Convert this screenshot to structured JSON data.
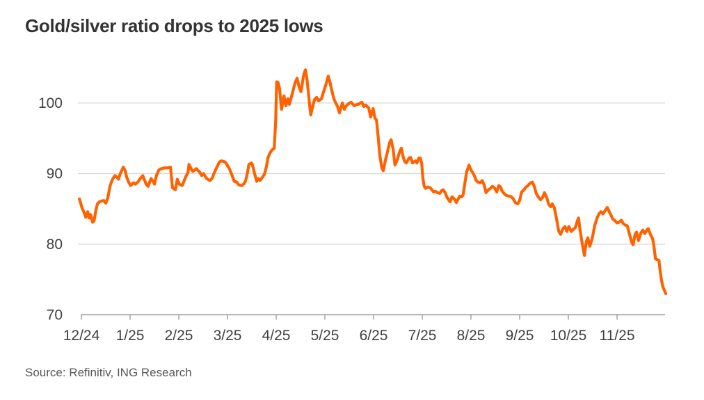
{
  "title": "Gold/silver ratio drops to 2025 lows",
  "source_note": "Source: Refinitiv, ING Research",
  "colors": {
    "line": "#FF6200",
    "title_text": "#333333",
    "axis_text": "#404040",
    "grid_line": "#d9d9d9",
    "axis_line": "#9b9b9b",
    "source_text": "#56575b",
    "background": "#ffffff"
  },
  "chart_data": {
    "type": "line",
    "title": "Gold/silver ratio drops to 2025 lows",
    "xlabel": "",
    "ylabel": "",
    "x_unit": "months offset from 12/24 tick (0 = 12/24, 11 = 11/25)",
    "x_tick_labels": [
      "12/24",
      "1/25",
      "2/25",
      "3/25",
      "4/25",
      "5/25",
      "6/25",
      "7/25",
      "8/25",
      "9/25",
      "10/25",
      "11/25"
    ],
    "x_tick_positions": [
      0,
      1,
      2,
      3,
      4,
      5,
      6,
      7,
      8,
      9,
      10,
      11
    ],
    "y_ticks": [
      70,
      80,
      90,
      100
    ],
    "ylim": [
      70,
      106
    ],
    "xlim": [
      -0.05,
      12.0
    ],
    "grid": "horizontal",
    "legend": "none",
    "series": [
      {
        "name": "Gold/silver ratio",
        "color": "#FF6200",
        "points": [
          [
            -0.04,
            86.4
          ],
          [
            0.01,
            85.2
          ],
          [
            0.06,
            84.4
          ],
          [
            0.09,
            83.8
          ],
          [
            0.13,
            84.6
          ],
          [
            0.16,
            83.7
          ],
          [
            0.19,
            84.2
          ],
          [
            0.23,
            83.1
          ],
          [
            0.26,
            83.3
          ],
          [
            0.3,
            84.9
          ],
          [
            0.33,
            85.7
          ],
          [
            0.37,
            86.0
          ],
          [
            0.41,
            86.1
          ],
          [
            0.46,
            86.2
          ],
          [
            0.5,
            85.8
          ],
          [
            0.54,
            86.5
          ],
          [
            0.59,
            88.3
          ],
          [
            0.64,
            89.2
          ],
          [
            0.69,
            89.7
          ],
          [
            0.73,
            89.5
          ],
          [
            0.76,
            89.2
          ],
          [
            0.8,
            90.0
          ],
          [
            0.86,
            90.9
          ],
          [
            0.9,
            90.4
          ],
          [
            0.93,
            89.5
          ],
          [
            0.97,
            88.8
          ],
          [
            1.01,
            88.3
          ],
          [
            1.07,
            88.7
          ],
          [
            1.11,
            88.5
          ],
          [
            1.16,
            88.8
          ],
          [
            1.21,
            89.3
          ],
          [
            1.26,
            89.7
          ],
          [
            1.33,
            88.5
          ],
          [
            1.37,
            88.2
          ],
          [
            1.43,
            89.3
          ],
          [
            1.47,
            88.9
          ],
          [
            1.5,
            88.5
          ],
          [
            1.54,
            89.7
          ],
          [
            1.59,
            90.5
          ],
          [
            1.64,
            90.7
          ],
          [
            1.7,
            90.8
          ],
          [
            1.76,
            90.8
          ],
          [
            1.83,
            90.9
          ],
          [
            1.87,
            88.0
          ],
          [
            1.93,
            87.7
          ],
          [
            1.97,
            89.2
          ],
          [
            2.01,
            88.5
          ],
          [
            2.07,
            88.3
          ],
          [
            2.14,
            89.5
          ],
          [
            2.19,
            90.2
          ],
          [
            2.21,
            91.3
          ],
          [
            2.26,
            90.6
          ],
          [
            2.29,
            90.3
          ],
          [
            2.33,
            90.5
          ],
          [
            2.36,
            90.7
          ],
          [
            2.4,
            90.4
          ],
          [
            2.43,
            90.2
          ],
          [
            2.47,
            89.7
          ],
          [
            2.51,
            90.0
          ],
          [
            2.56,
            89.4
          ],
          [
            2.59,
            89.2
          ],
          [
            2.64,
            89.0
          ],
          [
            2.69,
            89.4
          ],
          [
            2.71,
            89.8
          ],
          [
            2.76,
            90.6
          ],
          [
            2.79,
            91.0
          ],
          [
            2.83,
            91.6
          ],
          [
            2.87,
            91.8
          ],
          [
            2.93,
            91.7
          ],
          [
            2.97,
            91.5
          ],
          [
            3.01,
            91.0
          ],
          [
            3.04,
            90.7
          ],
          [
            3.09,
            89.8
          ],
          [
            3.14,
            88.9
          ],
          [
            3.19,
            88.8
          ],
          [
            3.23,
            88.4
          ],
          [
            3.29,
            88.3
          ],
          [
            3.33,
            88.5
          ],
          [
            3.37,
            88.9
          ],
          [
            3.41,
            90.1
          ],
          [
            3.44,
            91.3
          ],
          [
            3.49,
            91.5
          ],
          [
            3.51,
            91.3
          ],
          [
            3.56,
            89.9
          ],
          [
            3.6,
            88.9
          ],
          [
            3.63,
            89.3
          ],
          [
            3.67,
            89.0
          ],
          [
            3.71,
            89.4
          ],
          [
            3.76,
            89.9
          ],
          [
            3.8,
            91.0
          ],
          [
            3.83,
            92.2
          ],
          [
            3.87,
            92.9
          ],
          [
            3.91,
            93.3
          ],
          [
            3.96,
            93.6
          ],
          [
            3.99,
            97.5
          ],
          [
            4.01,
            103.0
          ],
          [
            4.04,
            102.9
          ],
          [
            4.07,
            102.0
          ],
          [
            4.11,
            99.1
          ],
          [
            4.16,
            101.0
          ],
          [
            4.2,
            99.6
          ],
          [
            4.24,
            100.6
          ],
          [
            4.27,
            99.8
          ],
          [
            4.33,
            101.3
          ],
          [
            4.39,
            102.9
          ],
          [
            4.43,
            103.5
          ],
          [
            4.47,
            102.3
          ],
          [
            4.51,
            101.6
          ],
          [
            4.56,
            103.8
          ],
          [
            4.6,
            104.7
          ],
          [
            4.63,
            103.5
          ],
          [
            4.66,
            101.6
          ],
          [
            4.69,
            99.5
          ],
          [
            4.71,
            98.3
          ],
          [
            4.76,
            99.8
          ],
          [
            4.79,
            100.5
          ],
          [
            4.83,
            100.8
          ],
          [
            4.87,
            100.3
          ],
          [
            4.93,
            100.6
          ],
          [
            4.97,
            101.5
          ],
          [
            5.03,
            102.8
          ],
          [
            5.07,
            103.8
          ],
          [
            5.11,
            102.8
          ],
          [
            5.14,
            101.8
          ],
          [
            5.19,
            100.5
          ],
          [
            5.23,
            99.9
          ],
          [
            5.26,
            99.5
          ],
          [
            5.3,
            98.6
          ],
          [
            5.36,
            100.0
          ],
          [
            5.4,
            99.1
          ],
          [
            5.44,
            99.6
          ],
          [
            5.47,
            99.8
          ],
          [
            5.51,
            100.0
          ],
          [
            5.54,
            100.1
          ],
          [
            5.59,
            99.7
          ],
          [
            5.61,
            99.6
          ],
          [
            5.66,
            99.8
          ],
          [
            5.69,
            99.8
          ],
          [
            5.73,
            100.0
          ],
          [
            5.76,
            100.1
          ],
          [
            5.8,
            99.5
          ],
          [
            5.84,
            99.7
          ],
          [
            5.9,
            99.3
          ],
          [
            5.94,
            98.0
          ],
          [
            5.99,
            99.2
          ],
          [
            6.03,
            97.8
          ],
          [
            6.06,
            97.6
          ],
          [
            6.09,
            95.5
          ],
          [
            6.13,
            92.5
          ],
          [
            6.17,
            90.8
          ],
          [
            6.2,
            90.4
          ],
          [
            6.24,
            91.8
          ],
          [
            6.29,
            93.2
          ],
          [
            6.33,
            94.4
          ],
          [
            6.36,
            94.8
          ],
          [
            6.4,
            93.5
          ],
          [
            6.44,
            91.2
          ],
          [
            6.49,
            92.0
          ],
          [
            6.53,
            93.0
          ],
          [
            6.57,
            93.6
          ],
          [
            6.61,
            92.3
          ],
          [
            6.64,
            91.7
          ],
          [
            6.67,
            91.5
          ],
          [
            6.73,
            92.2
          ],
          [
            6.76,
            92.3
          ],
          [
            6.8,
            91.5
          ],
          [
            6.86,
            91.8
          ],
          [
            6.89,
            91.5
          ],
          [
            6.93,
            92.2
          ],
          [
            6.96,
            92.2
          ],
          [
            6.99,
            91.4
          ],
          [
            7.01,
            89.5
          ],
          [
            7.04,
            88.2
          ],
          [
            7.07,
            87.9
          ],
          [
            7.11,
            88.1
          ],
          [
            7.16,
            88.0
          ],
          [
            7.2,
            87.7
          ],
          [
            7.23,
            87.4
          ],
          [
            7.27,
            87.5
          ],
          [
            7.31,
            87.3
          ],
          [
            7.36,
            87.2
          ],
          [
            7.4,
            87.6
          ],
          [
            7.43,
            87.7
          ],
          [
            7.47,
            87.3
          ],
          [
            7.51,
            86.6
          ],
          [
            7.57,
            86.0
          ],
          [
            7.61,
            86.7
          ],
          [
            7.66,
            86.4
          ],
          [
            7.7,
            85.9
          ],
          [
            7.73,
            86.3
          ],
          [
            7.77,
            86.8
          ],
          [
            7.81,
            86.7
          ],
          [
            7.84,
            87.0
          ],
          [
            7.87,
            88.4
          ],
          [
            7.91,
            90.2
          ],
          [
            7.96,
            91.2
          ],
          [
            8.0,
            90.5
          ],
          [
            8.03,
            90.2
          ],
          [
            8.07,
            89.7
          ],
          [
            8.1,
            89.1
          ],
          [
            8.14,
            88.8
          ],
          [
            8.19,
            88.7
          ],
          [
            8.23,
            89.0
          ],
          [
            8.27,
            88.4
          ],
          [
            8.31,
            87.3
          ],
          [
            8.36,
            87.7
          ],
          [
            8.4,
            87.9
          ],
          [
            8.44,
            88.2
          ],
          [
            8.49,
            87.9
          ],
          [
            8.53,
            87.4
          ],
          [
            8.57,
            88.3
          ],
          [
            8.61,
            88.1
          ],
          [
            8.64,
            87.5
          ],
          [
            8.69,
            87.1
          ],
          [
            8.73,
            86.9
          ],
          [
            8.79,
            86.8
          ],
          [
            8.83,
            86.7
          ],
          [
            8.87,
            86.4
          ],
          [
            8.91,
            85.9
          ],
          [
            8.96,
            85.7
          ],
          [
            9.0,
            86.2
          ],
          [
            9.04,
            87.4
          ],
          [
            9.09,
            87.7
          ],
          [
            9.13,
            88.1
          ],
          [
            9.17,
            88.3
          ],
          [
            9.21,
            88.6
          ],
          [
            9.26,
            88.8
          ],
          [
            9.3,
            88.2
          ],
          [
            9.34,
            87.2
          ],
          [
            9.39,
            86.6
          ],
          [
            9.43,
            86.3
          ],
          [
            9.47,
            86.6
          ],
          [
            9.51,
            87.3
          ],
          [
            9.56,
            86.5
          ],
          [
            9.6,
            85.6
          ],
          [
            9.64,
            85.3
          ],
          [
            9.67,
            85.7
          ],
          [
            9.71,
            85.2
          ],
          [
            9.76,
            83.5
          ],
          [
            9.8,
            81.9
          ],
          [
            9.84,
            81.4
          ],
          [
            9.89,
            82.2
          ],
          [
            9.93,
            82.5
          ],
          [
            9.97,
            81.8
          ],
          [
            10.01,
            82.5
          ],
          [
            10.06,
            81.8
          ],
          [
            10.1,
            82.1
          ],
          [
            10.14,
            82.3
          ],
          [
            10.19,
            83.4
          ],
          [
            10.21,
            83.7
          ],
          [
            10.24,
            82.0
          ],
          [
            10.29,
            79.9
          ],
          [
            10.33,
            78.4
          ],
          [
            10.37,
            80.4
          ],
          [
            10.4,
            80.9
          ],
          [
            10.44,
            79.7
          ],
          [
            10.49,
            80.8
          ],
          [
            10.54,
            82.6
          ],
          [
            10.59,
            83.7
          ],
          [
            10.63,
            84.3
          ],
          [
            10.67,
            84.6
          ],
          [
            10.71,
            84.3
          ],
          [
            10.76,
            84.8
          ],
          [
            10.8,
            85.2
          ],
          [
            10.84,
            84.6
          ],
          [
            10.87,
            84.2
          ],
          [
            10.91,
            83.6
          ],
          [
            10.96,
            83.3
          ],
          [
            11.0,
            83.0
          ],
          [
            11.04,
            83.1
          ],
          [
            11.09,
            83.4
          ],
          [
            11.13,
            82.9
          ],
          [
            11.17,
            82.7
          ],
          [
            11.21,
            82.6
          ],
          [
            11.26,
            81.3
          ],
          [
            11.3,
            80.3
          ],
          [
            11.33,
            79.9
          ],
          [
            11.37,
            81.4
          ],
          [
            11.4,
            81.7
          ],
          [
            11.44,
            80.5
          ],
          [
            11.49,
            81.6
          ],
          [
            11.53,
            82.0
          ],
          [
            11.57,
            81.5
          ],
          [
            11.61,
            82.0
          ],
          [
            11.64,
            82.2
          ],
          [
            11.69,
            81.3
          ],
          [
            11.73,
            80.8
          ],
          [
            11.76,
            79.6
          ],
          [
            11.79,
            77.9
          ],
          [
            11.83,
            77.8
          ],
          [
            11.86,
            77.7
          ],
          [
            11.89,
            76.0
          ],
          [
            11.91,
            75.0
          ],
          [
            11.94,
            74.0
          ],
          [
            11.97,
            73.5
          ],
          [
            12.0,
            73.0
          ]
        ]
      }
    ]
  }
}
